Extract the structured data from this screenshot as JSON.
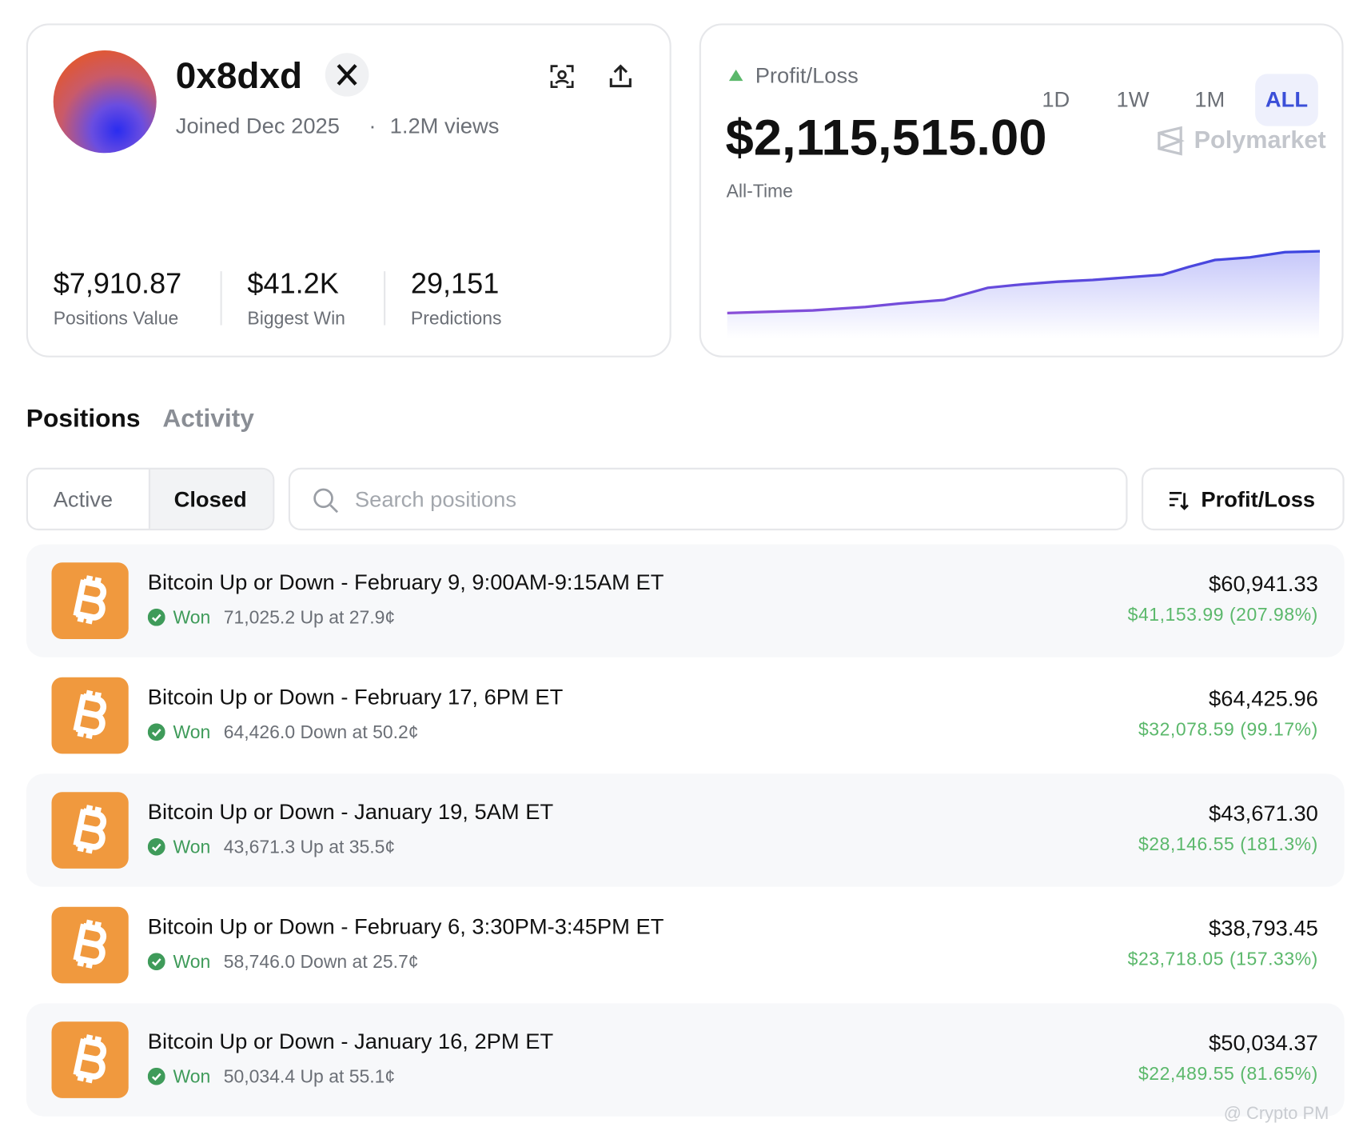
{
  "profile": {
    "name": "0x8dxd",
    "joined": "Joined Dec 2025",
    "views": "1.2M views",
    "stats": [
      {
        "value": "$7,910.87",
        "label": "Positions Value"
      },
      {
        "value": "$41.2K",
        "label": "Biggest Win"
      },
      {
        "value": "29,151",
        "label": "Predictions"
      }
    ]
  },
  "pnl": {
    "title": "Profit/Loss",
    "ranges": [
      "1D",
      "1W",
      "1M",
      "ALL"
    ],
    "selected_range": "ALL",
    "amount": "$2,115,515.00",
    "period": "All-Time",
    "brand": "Polymarket"
  },
  "tabs": [
    "Positions",
    "Activity"
  ],
  "filters": {
    "toggle": [
      "Active",
      "Closed"
    ],
    "search_placeholder": "Search positions",
    "sort": "Profit/Loss"
  },
  "positions": [
    {
      "title": "Bitcoin Up or Down - February 9, 9:00AM-9:15AM ET",
      "status": "Won",
      "detail": "71,025.2 Up at 27.9¢",
      "value": "$60,941.33",
      "pnl": "$41,153.99 (207.98%)"
    },
    {
      "title": "Bitcoin Up or Down - February 17, 6PM ET",
      "status": "Won",
      "detail": "64,426.0 Down at 50.2¢",
      "value": "$64,425.96",
      "pnl": "$32,078.59 (99.17%)"
    },
    {
      "title": "Bitcoin Up or Down - January 19, 5AM ET",
      "status": "Won",
      "detail": "43,671.3 Up at 35.5¢",
      "value": "$43,671.30",
      "pnl": "$28,146.55 (181.3%)"
    },
    {
      "title": "Bitcoin Up or Down - February 6, 3:30PM-3:45PM ET",
      "status": "Won",
      "detail": "58,746.0 Down at 25.7¢",
      "value": "$38,793.45",
      "pnl": "$23,718.05 (157.33%)"
    },
    {
      "title": "Bitcoin Up or Down - January 16, 2PM ET",
      "status": "Won",
      "detail": "50,034.4 Up at 55.1¢",
      "value": "$50,034.37",
      "pnl": "$22,489.55 (81.65%)"
    }
  ],
  "watermark": "@ Crypto PM"
}
